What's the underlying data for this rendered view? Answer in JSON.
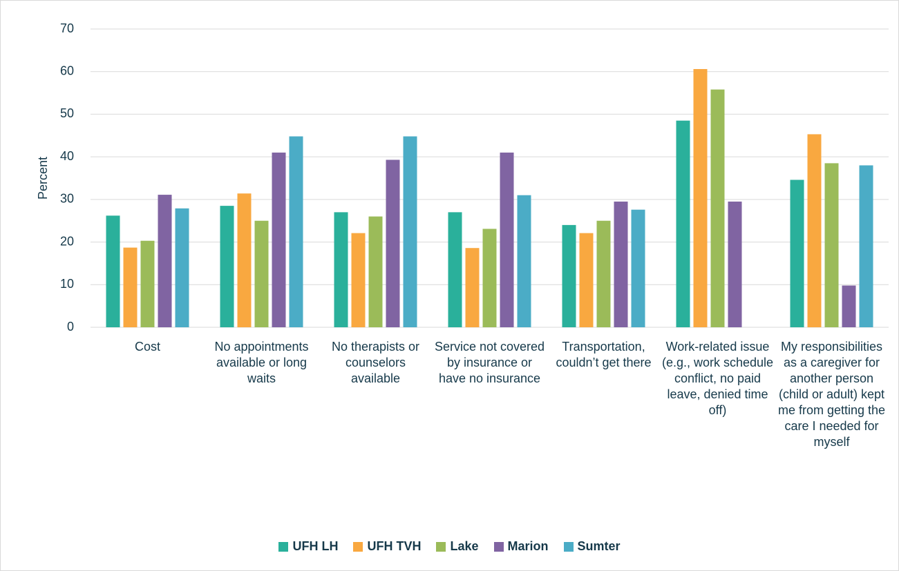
{
  "chart_data": {
    "type": "bar",
    "y_label": "Percent",
    "categories": [
      "Cost",
      "No appointments available or long waits",
      "No therapists or counselors available",
      "Service not covered by insurance or have no insurance",
      "Transportation, couldn’t get there",
      "Work-related issue (e.g., work schedule conflict, no paid leave, denied time off)",
      "My responsibilities as a caregiver for another person (child or adult) kept me from getting the care I needed for myself"
    ],
    "series": [
      {
        "name": "UFH LH",
        "color": "#2ab09b",
        "values": [
          26.2,
          28.5,
          27,
          27,
          24,
          48.5,
          34.6
        ]
      },
      {
        "name": "UFH TVH",
        "color": "#f9a840",
        "values": [
          18.7,
          31.4,
          22.1,
          18.6,
          22.1,
          60.6,
          45.3
        ]
      },
      {
        "name": "Lake",
        "color": "#9bbb59",
        "values": [
          20.3,
          25,
          26,
          23.1,
          25,
          55.8,
          38.5
        ]
      },
      {
        "name": "Marion",
        "color": "#8064a2",
        "values": [
          31.1,
          41,
          39.3,
          41,
          29.5,
          29.5,
          9.8
        ]
      },
      {
        "name": "Sumter",
        "color": "#4bacc6",
        "values": [
          27.9,
          44.8,
          44.8,
          31,
          27.6,
          null,
          38
        ]
      }
    ],
    "ylim": [
      0,
      70
    ],
    "yticks": [
      0,
      10,
      20,
      30,
      40,
      50,
      60,
      70
    ],
    "grid": true,
    "legend": "bottom"
  }
}
